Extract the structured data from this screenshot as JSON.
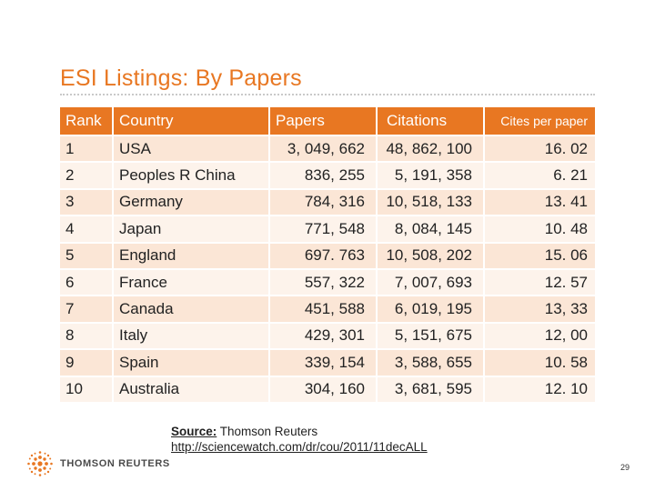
{
  "slide": {
    "title": "ESI Listings: By Papers",
    "page_number": "29"
  },
  "table": {
    "headers": [
      "Rank",
      "Country",
      "Papers",
      "Citations",
      "Cites per paper"
    ],
    "rows": [
      [
        "1",
        "USA",
        "3, 049, 662",
        "48, 862, 100",
        "16. 02"
      ],
      [
        "2",
        "Peoples R China",
        "836, 255",
        "5, 191, 358",
        "6. 21"
      ],
      [
        "3",
        "Germany",
        "784, 316",
        "10, 518, 133",
        "13. 41"
      ],
      [
        "4",
        "Japan",
        "771, 548",
        "8, 084, 145",
        "10. 48"
      ],
      [
        "5",
        "England",
        "697. 763",
        "10, 508, 202",
        "15. 06"
      ],
      [
        "6",
        "France",
        "557, 322",
        "7, 007, 693",
        "12. 57"
      ],
      [
        "7",
        "Canada",
        "451, 588",
        "6, 019, 195",
        "13, 33"
      ],
      [
        "8",
        "Italy",
        "429, 301",
        "5, 151, 675",
        "12, 00"
      ],
      [
        "9",
        "Spain",
        "339, 154",
        "3, 588, 655",
        "10. 58"
      ],
      [
        "10",
        "Australia",
        "304, 160",
        "3, 681, 595",
        "12. 10"
      ]
    ]
  },
  "source": {
    "label": "Source:",
    "publisher": "Thomson Reuters",
    "url": "http://sciencewatch.com/dr/cou/2011/11decALL"
  },
  "logo": {
    "name": "THOMSON REUTERS",
    "color": "#e87722"
  },
  "colors": {
    "accent": "#e87722",
    "row_odd": "#fbe6d6",
    "row_even": "#fdf3eb"
  }
}
